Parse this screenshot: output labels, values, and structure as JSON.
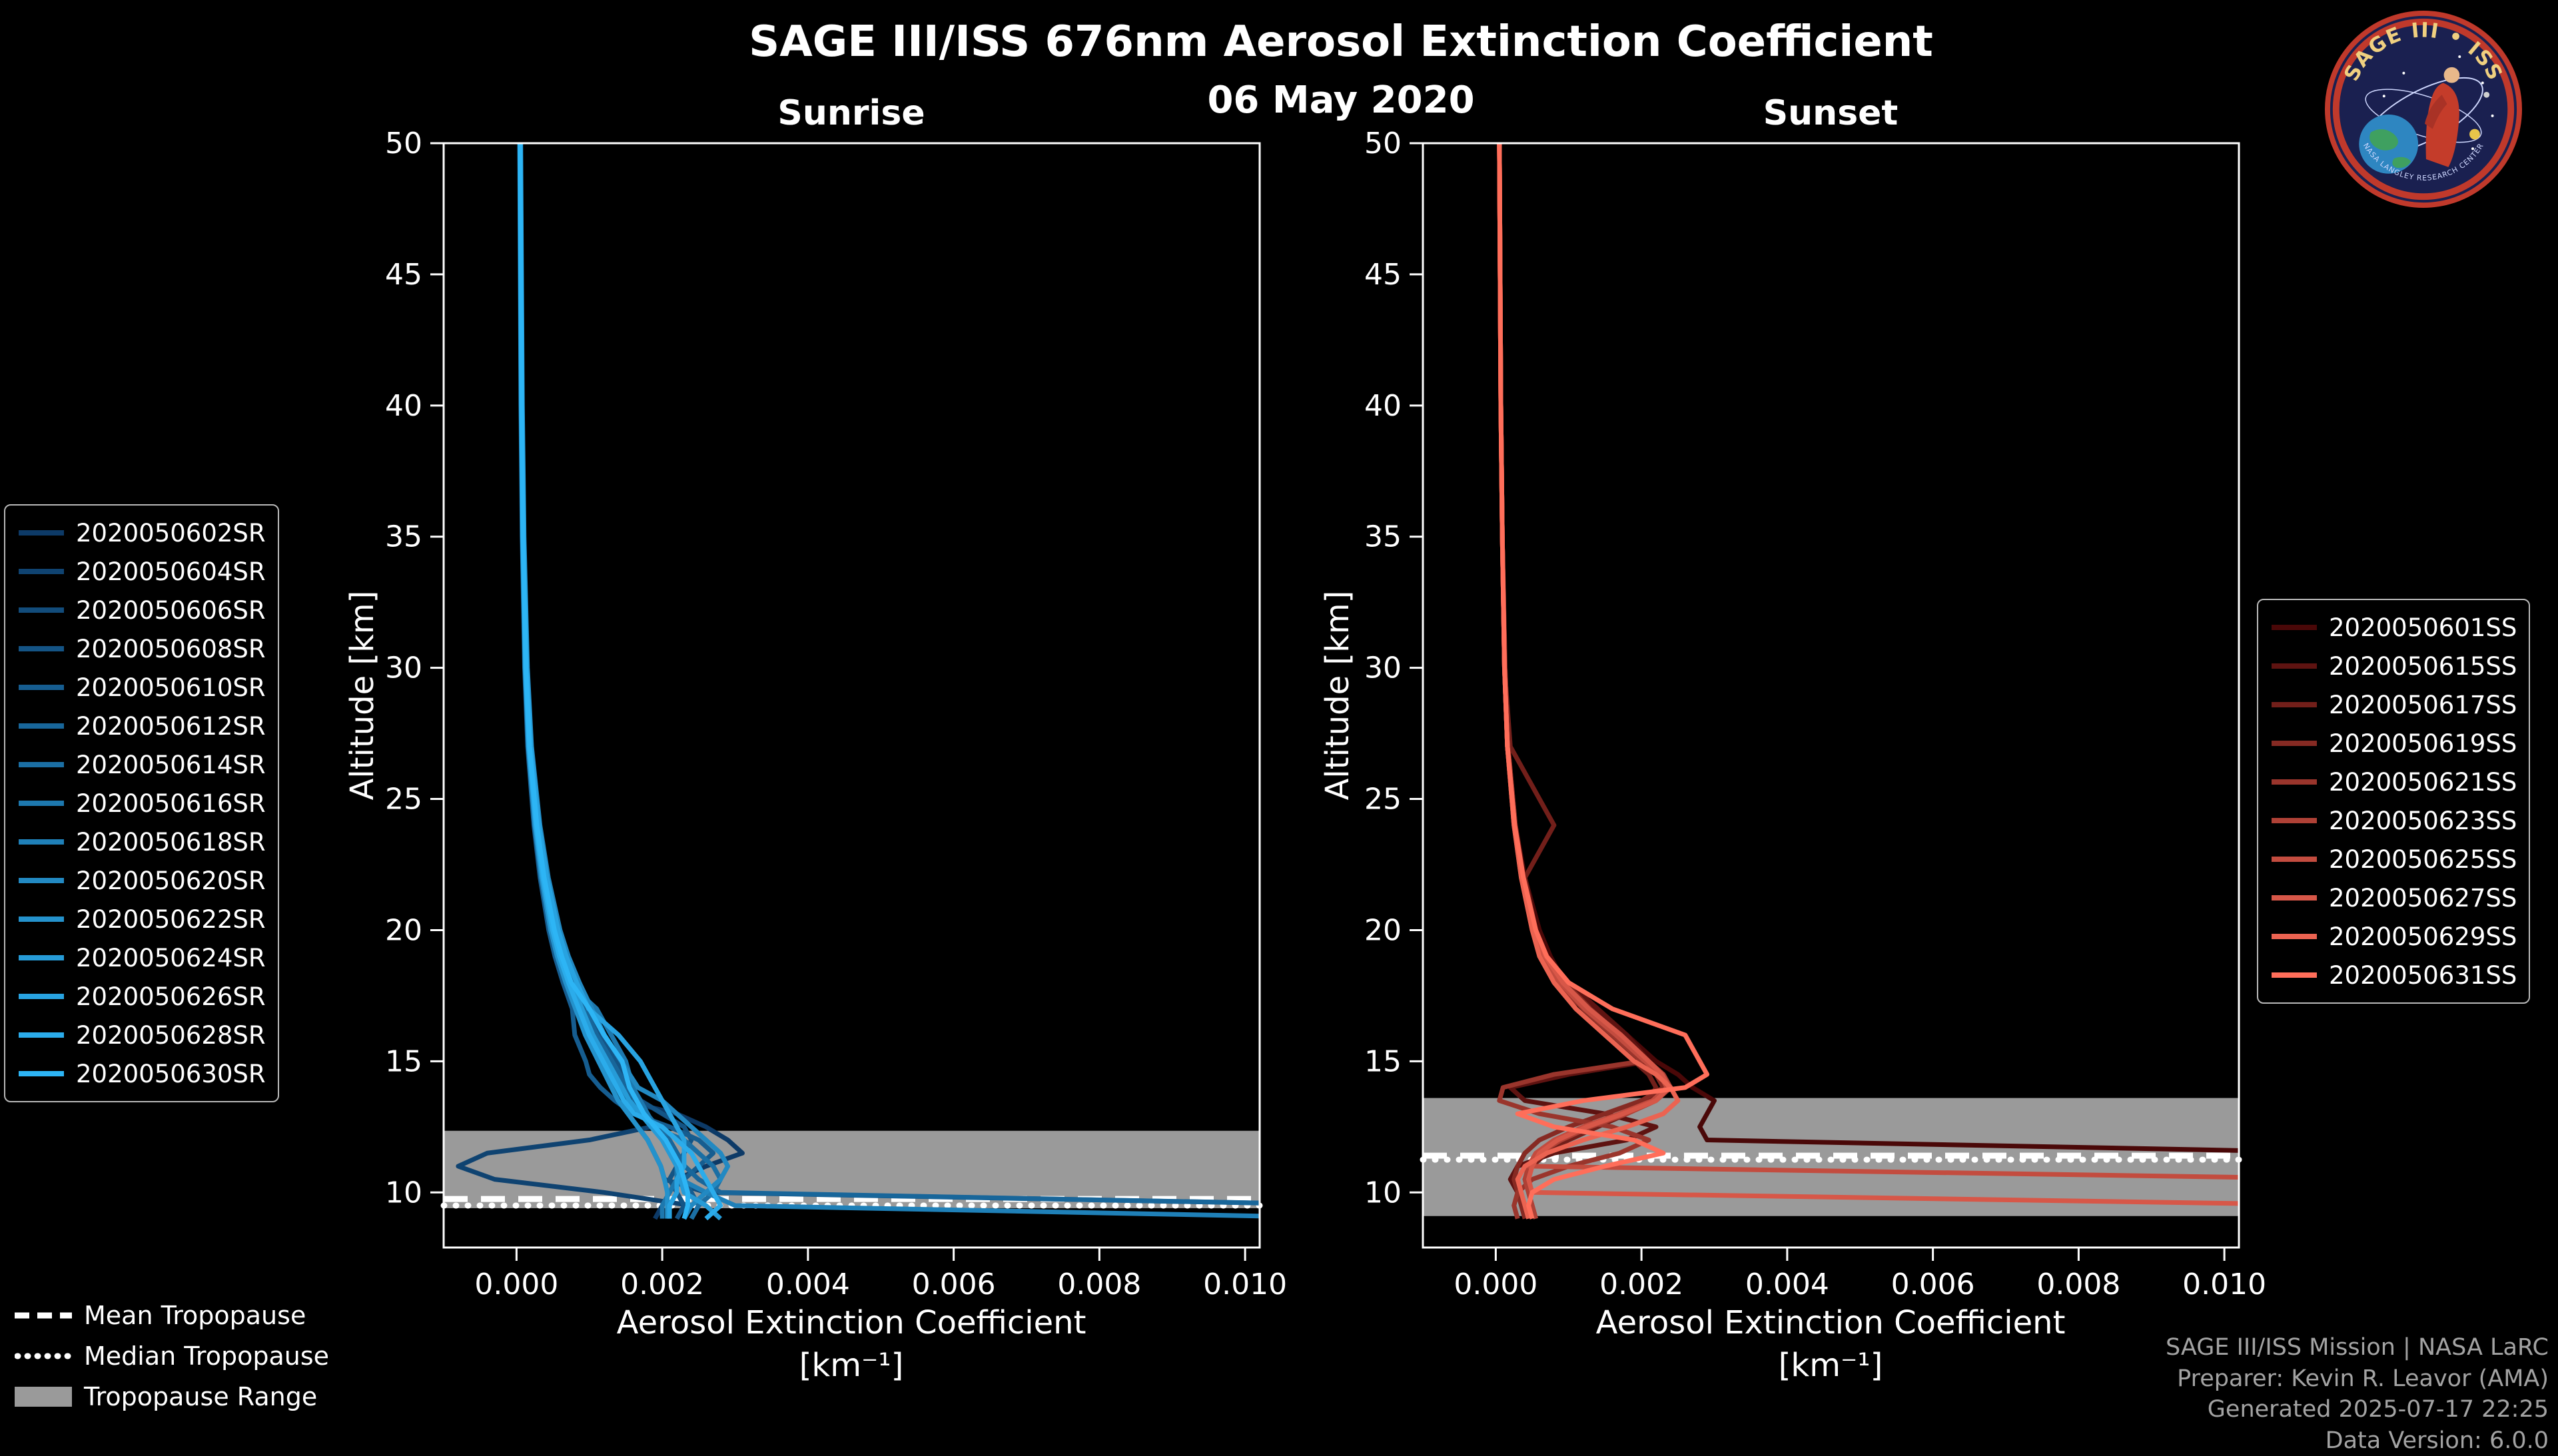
{
  "header": {
    "title": "SAGE III/ISS 676nm Aerosol Extinction Coefficient",
    "date": "06 May 2020"
  },
  "logo": {
    "text": "SAGE III • ISS",
    "ring_text": "NASA LANGLEY RESEARCH CENTER"
  },
  "tropopause_legend": {
    "items": [
      {
        "label": "Mean Tropopause"
      },
      {
        "label": "Median Tropopause"
      },
      {
        "label": "Tropopause Range"
      }
    ]
  },
  "footer": {
    "lines": [
      "SAGE III/ISS Mission | NASA LaRC",
      "Preparer: Kevin R. Leavor (AMA)",
      "Generated 2025-07-17 22:25",
      "Data Version: 6.0.0"
    ]
  },
  "chart_data": [
    {
      "type": "line",
      "panel": "sunrise",
      "title": "Sunrise",
      "xlabel": "Aerosol Extinction Coefficient",
      "xunits": "[km⁻¹]",
      "ylabel": "Altitude [km]",
      "xlim": [
        -0.001,
        0.0102
      ],
      "ylim": [
        7.9,
        50
      ],
      "xticks": [
        0,
        0.002,
        0.004,
        0.006,
        0.008,
        0.01
      ],
      "xtick_labels": [
        "0.000",
        "0.002",
        "0.004",
        "0.006",
        "0.008",
        "0.010"
      ],
      "yticks": [
        10,
        15,
        20,
        25,
        30,
        35,
        40,
        45,
        50
      ],
      "unit_scale": 0.001,
      "altitudes_km": [
        50,
        45,
        40,
        35,
        30,
        27,
        24,
        22,
        20,
        19,
        18,
        17,
        16,
        15,
        14.5,
        14,
        13.5,
        13,
        12.5,
        12,
        11.5,
        11,
        10.5,
        10,
        9.5,
        9
      ],
      "tropopause": {
        "mean_km": 9.75,
        "median_km": 9.5,
        "range_km": [
          9.4,
          12.35
        ],
        "band_color": "#9a9a9a",
        "line_color": "#ffffff"
      },
      "series": [
        {
          "name": "2020050602SR",
          "color": "#0d3a67",
          "values": [
            0.05,
            0.06,
            0.07,
            0.09,
            0.12,
            0.17,
            0.27,
            0.36,
            0.49,
            0.59,
            0.71,
            0.86,
            1.0,
            1.19,
            1.28,
            1.38,
            1.47,
            2.2,
            2.6,
            2.9,
            3.1,
            2.6,
            2.2,
            2.1,
            2.0,
            1.9
          ]
        },
        {
          "name": "2020050604SR",
          "color": "#0f4371",
          "values": [
            0.05,
            0.06,
            0.07,
            0.09,
            0.13,
            0.18,
            0.28,
            0.38,
            0.52,
            0.62,
            0.75,
            0.9,
            1.05,
            1.25,
            1.35,
            1.45,
            1.55,
            1.7,
            1.85,
            1.0,
            -0.4,
            -0.8,
            -0.3,
            1.2,
            2.4,
            2.3
          ]
        },
        {
          "name": "2020050606SR",
          "color": "#124c7b",
          "values": [
            0.045,
            0.054,
            0.063,
            0.081,
            0.117,
            0.162,
            0.252,
            0.342,
            0.468,
            0.558,
            0.675,
            0.81,
            0.945,
            1.125,
            1.215,
            1.305,
            1.395,
            1.53,
            1.665,
            1.8,
            1.89,
            1.98,
            2.03,
            2.6,
            12,
            12
          ]
        },
        {
          "name": "2020050608SR",
          "color": "#145485",
          "values": [
            0.055,
            0.066,
            0.077,
            0.099,
            0.143,
            0.198,
            0.308,
            0.418,
            0.572,
            0.682,
            0.825,
            0.99,
            1.155,
            1.375,
            1.485,
            1.595,
            1.705,
            2.0,
            2.3,
            2.4,
            2.3,
            2.2,
            2.1,
            2.2,
            2.3,
            2.2
          ]
        },
        {
          "name": "2020050610SR",
          "color": "#165d90",
          "values": [
            0.043,
            0.051,
            0.06,
            0.077,
            0.111,
            0.153,
            0.238,
            0.323,
            0.442,
            0.527,
            0.638,
            0.765,
            0.8,
            0.95,
            1.0,
            1.15,
            1.35,
            1.6,
            2.1,
            2.5,
            2.7,
            2.5,
            2.3,
            2.4,
            2.5,
            2.4
          ]
        },
        {
          "name": "2020050612SR",
          "color": "#18669a",
          "values": [
            0.053,
            0.063,
            0.074,
            0.095,
            0.137,
            0.189,
            0.294,
            0.399,
            0.546,
            0.651,
            0.788,
            0.945,
            1.103,
            1.313,
            1.418,
            1.523,
            1.628,
            1.785,
            1.943,
            2.1,
            2.205,
            2.31,
            2.5,
            2.8,
            12,
            12
          ]
        },
        {
          "name": "2020050614SR",
          "color": "#1b6fa4",
          "values": [
            0.05,
            0.06,
            0.07,
            0.09,
            0.13,
            0.18,
            0.28,
            0.38,
            0.52,
            0.62,
            0.75,
            0.9,
            1.05,
            1.25,
            1.35,
            1.45,
            1.55,
            1.7,
            1.85,
            2.3,
            2.5,
            2.7,
            2.8,
            2.7,
            2.5,
            2.4
          ]
        },
        {
          "name": "2020050616SR",
          "color": "#1d78ae",
          "values": [
            0.048,
            0.057,
            0.067,
            0.086,
            0.124,
            0.171,
            0.266,
            0.361,
            0.494,
            0.589,
            0.713,
            1.1,
            1.3,
            1.5,
            1.55,
            1.6,
            1.7,
            1.8,
            1.9,
            2.0,
            2.1,
            2.2,
            2.2,
            2.1,
            2.0,
            2.0
          ]
        },
        {
          "name": "2020050618SR",
          "color": "#1f80b8",
          "values": [
            0.05,
            0.06,
            0.07,
            0.09,
            0.13,
            0.18,
            0.28,
            0.38,
            0.52,
            0.62,
            0.75,
            0.9,
            1.05,
            1.25,
            1.35,
            1.45,
            1.55,
            1.7,
            1.85,
            2.0,
            2.1,
            2.2,
            2.25,
            2.6,
            3.0,
            12
          ]
        },
        {
          "name": "2020050620SR",
          "color": "#2289c2",
          "values": [
            0.058,
            0.069,
            0.081,
            0.104,
            0.15,
            0.207,
            0.322,
            0.437,
            0.598,
            0.713,
            0.863,
            1.035,
            1.208,
            1.438,
            1.553,
            1.668,
            2.0,
            2.2,
            2.4,
            2.6,
            2.8,
            2.9,
            2.8,
            2.6,
            2.4,
            2.3
          ]
        },
        {
          "name": "2020050622SR",
          "color": "#2492cc",
          "values": [
            0.045,
            0.054,
            0.063,
            0.081,
            0.117,
            0.162,
            0.252,
            0.342,
            0.468,
            0.558,
            0.675,
            0.81,
            0.945,
            1.125,
            1.215,
            1.305,
            1.395,
            1.53,
            1.665,
            1.8,
            1.89,
            1.98,
            2.03,
            2.07,
            2.07,
            2.07
          ]
        },
        {
          "name": "2020050624SR",
          "color": "#269bd7",
          "values": [
            0.05,
            0.06,
            0.07,
            0.09,
            0.13,
            0.18,
            0.28,
            0.38,
            0.52,
            0.62,
            0.75,
            0.9,
            1.05,
            1.25,
            1.35,
            1.45,
            1.55,
            1.7,
            1.85,
            2.0,
            2.1,
            2.2,
            2.25,
            2.3,
            2.6,
            2.8
          ]
        },
        {
          "name": "2020050626SR",
          "color": "#28a3e1",
          "values": [
            0.055,
            0.066,
            0.077,
            0.099,
            0.143,
            0.198,
            0.308,
            0.418,
            0.572,
            0.682,
            0.825,
            0.99,
            1.4,
            1.7,
            1.8,
            1.9,
            2.0,
            2.1,
            2.2,
            2.3,
            2.3,
            2.3,
            2.2,
            2.2,
            2.1,
            2.1
          ]
        },
        {
          "name": "2020050628SR",
          "color": "#2baceb",
          "values": [
            0.048,
            0.057,
            0.067,
            0.086,
            0.124,
            0.171,
            0.266,
            0.361,
            0.494,
            0.589,
            0.713,
            0.855,
            0.998,
            1.188,
            1.283,
            1.378,
            1.473,
            1.615,
            2.0,
            2.2,
            2.4,
            2.5,
            2.6,
            2.7,
            2.8,
            2.6
          ]
        },
        {
          "name": "2020050630SR",
          "color": "#2db5f5",
          "values": [
            0.05,
            0.06,
            0.07,
            0.09,
            0.13,
            0.18,
            0.28,
            0.38,
            0.52,
            0.62,
            0.75,
            1.0,
            1.2,
            1.45,
            1.5,
            1.55,
            1.65,
            1.75,
            1.9,
            2.05,
            2.15,
            2.25,
            2.3,
            2.35,
            2.35,
            2.3
          ]
        }
      ]
    },
    {
      "type": "line",
      "panel": "sunset",
      "title": "Sunset",
      "xlabel": "Aerosol Extinction Coefficient",
      "xunits": "[km⁻¹]",
      "ylabel": "Altitude [km]",
      "xlim": [
        -0.001,
        0.0102
      ],
      "ylim": [
        7.9,
        50
      ],
      "xticks": [
        0,
        0.002,
        0.004,
        0.006,
        0.008,
        0.01
      ],
      "xtick_labels": [
        "0.000",
        "0.002",
        "0.004",
        "0.006",
        "0.008",
        "0.010"
      ],
      "yticks": [
        10,
        15,
        20,
        25,
        30,
        35,
        40,
        45,
        50
      ],
      "unit_scale": 0.001,
      "altitudes_km": [
        50,
        45,
        40,
        35,
        30,
        27,
        24,
        22,
        20,
        19,
        18,
        17,
        16,
        15,
        14.5,
        14,
        13.5,
        13,
        12.5,
        12,
        11.5,
        11,
        10.5,
        10,
        9.5,
        9
      ],
      "tropopause": {
        "mean_km": 11.4,
        "median_km": 11.25,
        "range_km": [
          9.1,
          13.6
        ],
        "band_color": "#9a9a9a",
        "line_color": "#ffffff"
      },
      "series": [
        {
          "name": "2020050601SS",
          "color": "#4a0808",
          "values": [
            0.05,
            0.06,
            0.07,
            0.09,
            0.12,
            0.17,
            0.27,
            0.4,
            0.6,
            0.75,
            0.95,
            1.3,
            1.8,
            2.2,
            2.5,
            2.7,
            3.0,
            2.9,
            2.8,
            2.9,
            12,
            12,
            null,
            null,
            null,
            null
          ]
        },
        {
          "name": "2020050615SS",
          "color": "#5e1311",
          "values": [
            0.05,
            0.06,
            0.07,
            0.09,
            0.12,
            0.16,
            0.26,
            0.36,
            0.5,
            0.7,
            1.0,
            1.4,
            1.8,
            2.1,
            1.0,
            0.2,
            0.4,
            1.5,
            2.2,
            1.8,
            0.8,
            0.3,
            0.2,
            0.3,
            0.4,
            0.5
          ]
        },
        {
          "name": "2020050617SS",
          "color": "#721f1a",
          "values": [
            0.05,
            0.06,
            0.07,
            0.09,
            0.12,
            0.2,
            0.8,
            0.4,
            0.55,
            0.65,
            0.85,
            1.1,
            1.5,
            1.9,
            2.1,
            2.2,
            2.1,
            1.8,
            1.4,
            1.0,
            0.7,
            0.5,
            0.4,
            0.45,
            0.5,
            0.55
          ]
        },
        {
          "name": "2020050619SS",
          "color": "#862a23",
          "values": [
            0.05,
            0.06,
            0.07,
            0.09,
            0.13,
            0.17,
            0.27,
            0.38,
            0.55,
            0.7,
            0.95,
            1.3,
            1.7,
            2.0,
            2.2,
            2.3,
            2.0,
            1.5,
            1.0,
            0.6,
            0.4,
            0.3,
            0.25,
            0.3,
            0.35,
            0.4
          ]
        },
        {
          "name": "2020050621SS",
          "color": "#9a352c",
          "values": [
            0.05,
            0.06,
            0.07,
            0.09,
            0.12,
            0.16,
            0.25,
            0.35,
            0.5,
            0.62,
            0.85,
            1.2,
            1.6,
            2.0,
            0.8,
            0.1,
            0.05,
            0.6,
            1.6,
            2.1,
            1.7,
            1.0,
            0.5,
            0.3,
            0.25,
            0.3
          ]
        },
        {
          "name": "2020050623SS",
          "color": "#af4136",
          "values": [
            0.05,
            0.06,
            0.07,
            0.09,
            0.12,
            0.16,
            0.26,
            0.37,
            0.52,
            0.66,
            0.9,
            1.25,
            1.7,
            2.1,
            2.3,
            2.4,
            2.2,
            1.8,
            1.3,
            0.9,
            0.6,
            0.45,
            0.4,
            0.45,
            0.5,
            0.55
          ]
        },
        {
          "name": "2020050625SS",
          "color": "#c34c3f",
          "values": [
            0.05,
            0.06,
            0.07,
            0.09,
            0.12,
            0.16,
            0.25,
            0.36,
            0.52,
            0.64,
            0.88,
            1.22,
            1.65,
            2.05,
            2.25,
            2.35,
            2.15,
            1.7,
            1.2,
            0.8,
            0.55,
            0.45,
            12,
            12,
            null,
            null
          ]
        },
        {
          "name": "2020050627SS",
          "color": "#d75748",
          "values": [
            0.05,
            0.06,
            0.07,
            0.09,
            0.12,
            0.16,
            0.26,
            0.37,
            0.54,
            0.68,
            0.92,
            1.28,
            1.72,
            2.1,
            2.28,
            2.38,
            2.2,
            1.75,
            1.25,
            0.85,
            0.6,
            0.5,
            0.45,
            0.5,
            12,
            12
          ]
        },
        {
          "name": "2020050629SS",
          "color": "#eb6351",
          "values": [
            0.05,
            0.06,
            0.07,
            0.09,
            0.12,
            0.16,
            0.25,
            0.35,
            0.5,
            0.6,
            0.8,
            1.1,
            1.5,
            1.9,
            2.2,
            2.4,
            2.5,
            2.3,
            1.8,
            1.2,
            0.7,
            0.4,
            0.3,
            0.35,
            0.4,
            0.45
          ]
        },
        {
          "name": "2020050631SS",
          "color": "#ff6e5a",
          "values": [
            0.05,
            0.06,
            0.07,
            0.09,
            0.12,
            0.16,
            0.26,
            0.38,
            0.55,
            0.7,
            1.0,
            1.6,
            2.6,
            2.8,
            2.9,
            2.6,
            1.2,
            0.3,
            0.8,
            1.9,
            2.3,
            1.5,
            0.8,
            0.5,
            0.45,
            0.5
          ]
        }
      ]
    }
  ]
}
